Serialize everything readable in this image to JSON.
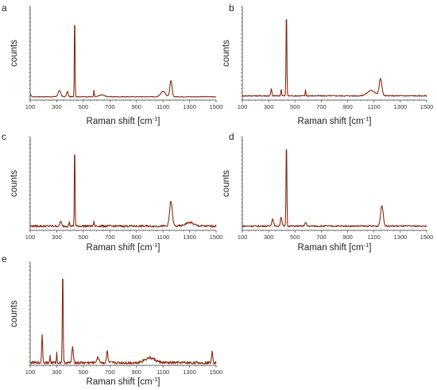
{
  "colors": {
    "spectrum": "#8b2a12",
    "axis": "#333333"
  },
  "chart_data": [
    {
      "type": "line",
      "panel": "a",
      "ylabel": "counts",
      "xlabel": "Raman shift [cm",
      "xlabel_sup": "-1",
      "xlabel_suffix": "]",
      "xlim": [
        100,
        1500
      ],
      "ylim": [
        0,
        1
      ],
      "xticks": [
        "100",
        "300",
        "500",
        "700",
        "900",
        "1100",
        "1300",
        "1500"
      ],
      "peaks": [
        [
          100,
          0.03,
          0.06
        ],
        [
          320,
          0.07,
          0.1
        ],
        [
          380,
          0.06,
          0.06
        ],
        [
          435,
          1.0,
          0.005
        ],
        [
          580,
          0.07,
          0.02
        ],
        [
          640,
          0.02,
          0.2
        ],
        [
          1100,
          0.06,
          0.18
        ],
        [
          1160,
          0.18,
          0.08
        ]
      ],
      "baseline": 0.02,
      "noise": 0.004
    },
    {
      "type": "line",
      "panel": "b",
      "ylabel": "counts",
      "xlabel": "Raman shift [cm",
      "xlabel_sup": "-1",
      "xlabel_suffix": "]",
      "xlim": [
        100,
        1500
      ],
      "ylim": [
        0,
        1
      ],
      "xticks": [
        "100",
        "300",
        "500",
        "700",
        "900",
        "1100",
        "1300",
        "1500"
      ],
      "peaks": [
        [
          320,
          0.08,
          0.04
        ],
        [
          395,
          0.08,
          0.03
        ],
        [
          435,
          1.0,
          0.03
        ],
        [
          580,
          0.07,
          0.02
        ],
        [
          1080,
          0.06,
          0.3
        ],
        [
          1150,
          0.19,
          0.1
        ]
      ],
      "baseline": 0.03,
      "noise": 0.006
    },
    {
      "type": "line",
      "panel": "c",
      "ylabel": "counts",
      "xlabel": "Raman shift [cm",
      "xlabel_sup": "-1",
      "xlabel_suffix": "]",
      "xlim": [
        100,
        1500
      ],
      "ylim": [
        0,
        1
      ],
      "xticks": [
        "100",
        "300",
        "500",
        "700",
        "900",
        "1100",
        "1300",
        "1500"
      ],
      "peaks": [
        [
          330,
          0.06,
          0.05
        ],
        [
          395,
          0.05,
          0.03
        ],
        [
          435,
          1.0,
          0.02
        ],
        [
          580,
          0.05,
          0.03
        ],
        [
          1160,
          0.28,
          0.1
        ],
        [
          1300,
          0.04,
          0.3
        ]
      ],
      "baseline": 0.03,
      "noise": 0.012
    },
    {
      "type": "line",
      "panel": "d",
      "ylabel": "counts",
      "xlabel": "Raman shift [cm",
      "xlabel_sup": "-1",
      "xlabel_suffix": "]",
      "xlim": [
        100,
        1500
      ],
      "ylim": [
        0,
        1
      ],
      "xticks": [
        "100",
        "300",
        "500",
        "700",
        "900",
        "1100",
        "1300",
        "1500"
      ],
      "peaks": [
        [
          330,
          0.08,
          0.07
        ],
        [
          395,
          0.1,
          0.06
        ],
        [
          435,
          1.0,
          0.03
        ],
        [
          580,
          0.04,
          0.06
        ],
        [
          1160,
          0.23,
          0.1
        ]
      ],
      "baseline": 0.03,
      "noise": 0.008
    },
    {
      "type": "line",
      "panel": "e",
      "ylabel": "counts",
      "xlabel": "Raman shift [cm",
      "xlabel_sup": "-1",
      "xlabel_suffix": "]",
      "xlim": [
        100,
        1500
      ],
      "ylim": [
        0,
        1
      ],
      "xticks": [
        "100",
        "300",
        "500",
        "700",
        "900",
        "1100",
        "1300",
        "1500"
      ],
      "peaks": [
        [
          190,
          0.28,
          0.04
        ],
        [
          250,
          0.08,
          0.02
        ],
        [
          300,
          0.1,
          0.02
        ],
        [
          345,
          1.0,
          0.03
        ],
        [
          420,
          0.15,
          0.06
        ],
        [
          610,
          0.05,
          0.1
        ],
        [
          680,
          0.12,
          0.05
        ],
        [
          1000,
          0.05,
          0.4
        ],
        [
          1470,
          0.12,
          0.05
        ]
      ],
      "baseline": 0.01,
      "noise": 0.015
    }
  ]
}
